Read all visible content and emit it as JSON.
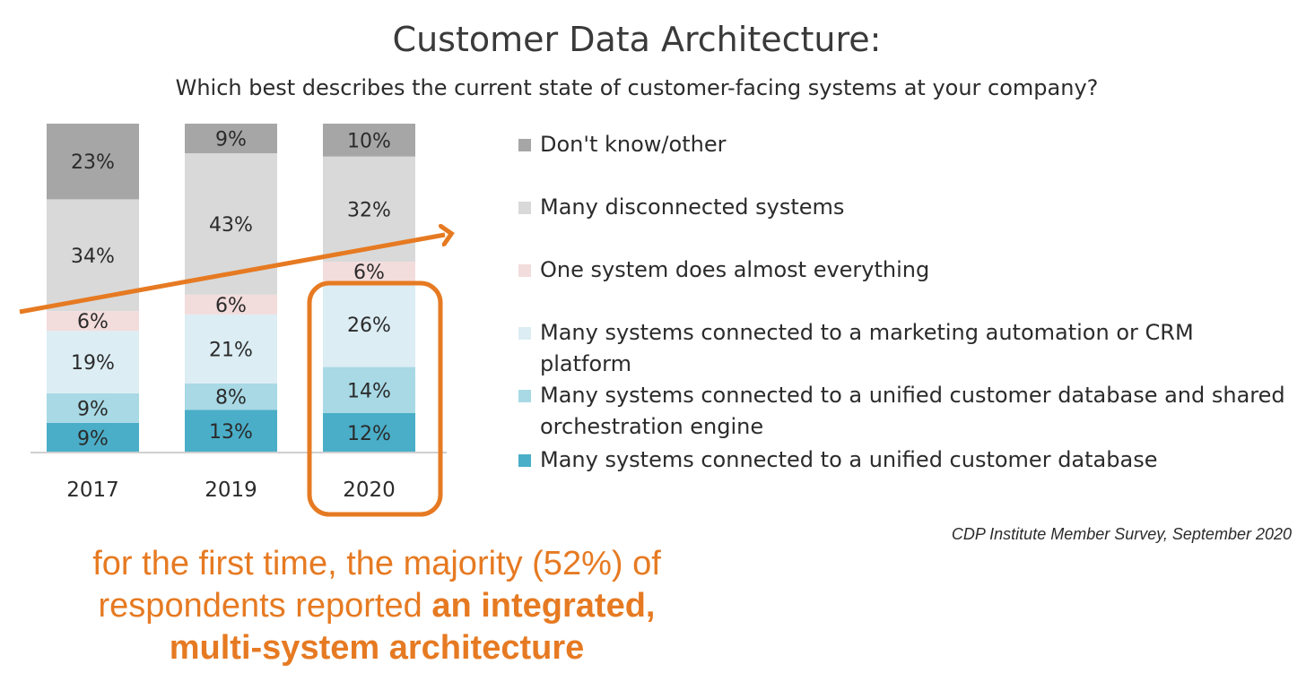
{
  "header": {
    "title": "Customer Data Architecture:",
    "subtitle": "Which best describes the current state of customer-facing systems at your company?"
  },
  "chart_data": {
    "type": "bar",
    "stacked": true,
    "categories": [
      "2017",
      "2019",
      "2020"
    ],
    "series": [
      {
        "name": "Many systems connected to a unified customer database",
        "color": "#4aaec8",
        "values": [
          9,
          13,
          12
        ]
      },
      {
        "name": "Many systems connected to a unified customer database and shared orchestration engine",
        "color": "#a8d9e5",
        "values": [
          9,
          8,
          14
        ]
      },
      {
        "name": "Many systems connected to a marketing automation or CRM platform",
        "color": "#dcedf4",
        "values": [
          19,
          21,
          26
        ]
      },
      {
        "name": "One system does almost everything",
        "color": "#f3dcdc",
        "values": [
          6,
          6,
          6
        ]
      },
      {
        "name": "Many disconnected systems",
        "color": "#d9d9d9",
        "values": [
          34,
          43,
          32
        ]
      },
      {
        "name": "Don't know/other",
        "color": "#a6a6a6",
        "values": [
          23,
          9,
          10
        ]
      }
    ],
    "value_suffix": "%",
    "ylim": [
      0,
      100
    ],
    "legend_placement": "right",
    "grid": false,
    "highlight_category": "2020",
    "accent_color": "#e67a22"
  },
  "source": "CDP Institute Member Survey, September 2020",
  "callout": {
    "line1": "for the first time, the majority (52%) of",
    "line2_plain": "respondents reported ",
    "line2_bold": "an integrated,",
    "line3_bold": "multi-system architecture"
  }
}
